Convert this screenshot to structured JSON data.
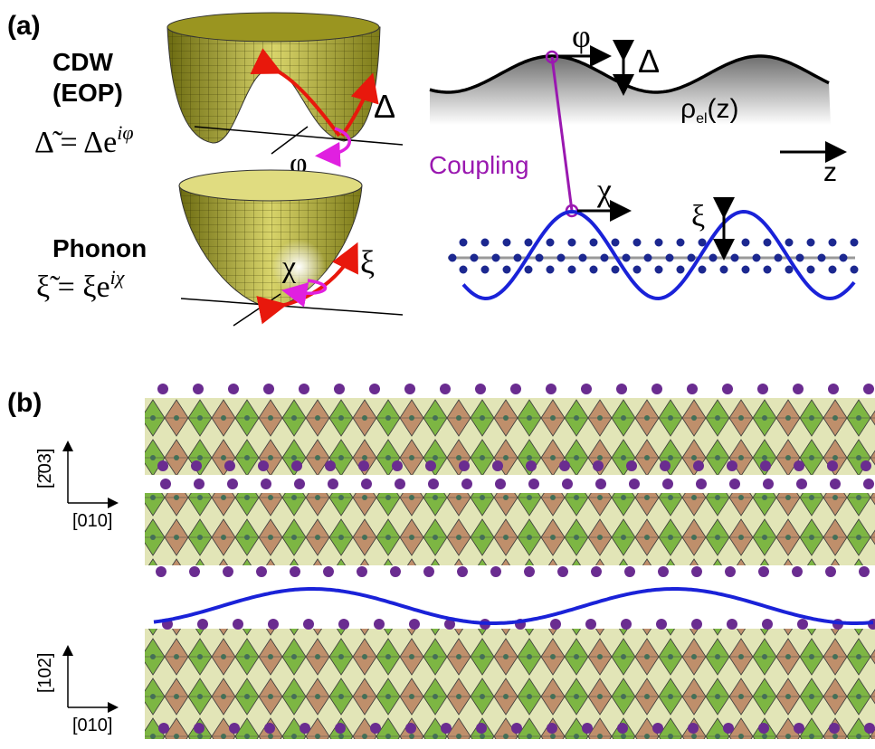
{
  "panel_a": {
    "label": "(a)",
    "cdw": {
      "title_line1": "CDW",
      "title_line2": "(EOP)",
      "equation": {
        "base": "Δ̃ = Δe",
        "superscript": "iφ"
      },
      "phase": "φ",
      "amplitude": "Δ"
    },
    "phonon": {
      "title": "Phonon",
      "equation": {
        "base": "ξ̃ = ξe",
        "superscript": "iχ"
      },
      "phase": "χ",
      "amplitude": "ξ"
    },
    "wave": {
      "phase": "φ",
      "amplitude": "Δ",
      "density": {
        "base": "ρ",
        "subscript": "el",
        "argument": "(z)"
      },
      "coupling": "Coupling",
      "axis": "z",
      "lattice_phase": "χ",
      "lattice_amplitude": "ξ"
    }
  },
  "panel_b": {
    "label": "(b)",
    "view_1": {
      "vertical_axis": "[2̄03]",
      "horizontal_axis": "[010]"
    },
    "view_2": {
      "vertical_axis": "[102]",
      "horizontal_axis": "[010]"
    }
  }
}
